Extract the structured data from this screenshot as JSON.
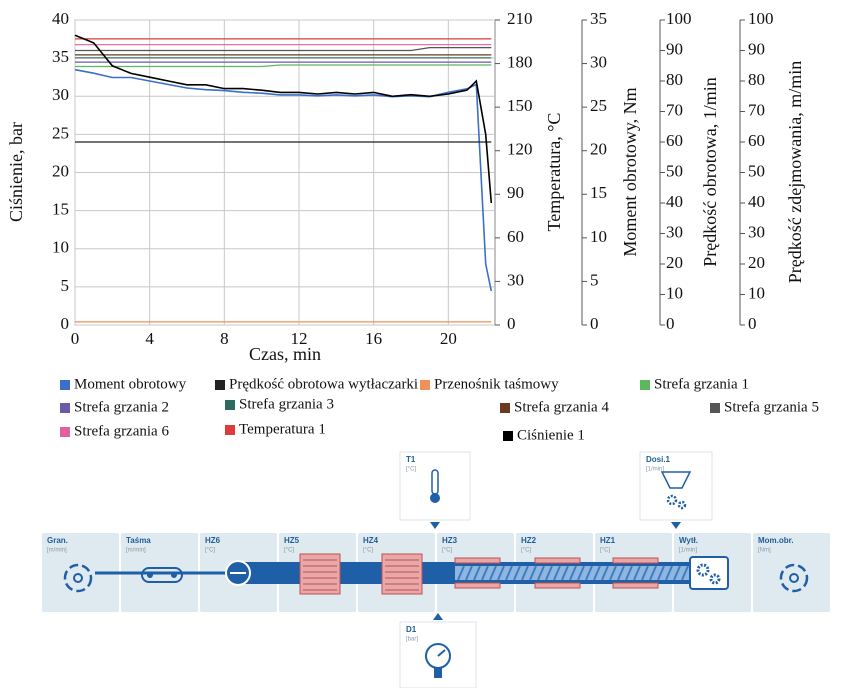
{
  "chart_data": {
    "type": "line",
    "x": [
      0,
      1,
      2,
      3,
      4,
      5,
      6,
      7,
      8,
      9,
      10,
      11,
      12,
      13,
      14,
      15,
      16,
      17,
      18,
      19,
      20,
      21,
      21.5,
      22,
      22.3
    ],
    "xlabel": "Czas, min",
    "xlim": [
      0,
      22.5
    ],
    "xticks": [
      0,
      4,
      8,
      12,
      16,
      20
    ],
    "grid": true,
    "ylabel": "Ciśnienie, bar",
    "ylim": [
      0,
      40
    ],
    "yticks": [
      0,
      5,
      10,
      15,
      20,
      25,
      30,
      35,
      40
    ],
    "y2label": "Temperatura, °C",
    "y2lim": [
      0,
      210
    ],
    "y2ticks": [
      0,
      30,
      60,
      90,
      120,
      150,
      180,
      210
    ],
    "y3label": "Moment obrotowy, Nm",
    "y3lim": [
      0,
      35
    ],
    "y3ticks": [
      0,
      5,
      10,
      15,
      20,
      25,
      30,
      35
    ],
    "y4label": "Prędkość obrotowa, 1/min",
    "y4lim": [
      0,
      100
    ],
    "y4ticks": [
      0,
      10,
      20,
      30,
      40,
      50,
      60,
      70,
      80,
      90,
      100
    ],
    "y5label": "Prędkość zdejmowania, m/min",
    "y5lim": [
      0,
      100
    ],
    "y5ticks": [
      0,
      10,
      20,
      30,
      40,
      50,
      60,
      70,
      80,
      90,
      100
    ],
    "series": [
      {
        "name": "Moment obrotowy",
        "color": "#3a70c8",
        "axis": "y3",
        "values": [
          29.3,
          28.9,
          28.4,
          28.4,
          28,
          27.6,
          27.2,
          27,
          26.9,
          26.7,
          26.6,
          26.4,
          26.4,
          26.3,
          26.4,
          26.3,
          26.4,
          26.2,
          26.3,
          26.2,
          26.7,
          27.1,
          27.6,
          7,
          3.9
        ]
      },
      {
        "name": "Prędkość obrotowa wytłaczarki",
        "color": "#222222",
        "axis": "y4",
        "values": [
          60,
          60,
          60,
          60,
          60,
          60,
          60,
          60,
          60,
          60,
          60,
          60,
          60,
          60,
          60,
          60,
          60,
          60,
          60,
          60,
          60,
          60,
          60,
          60,
          60
        ]
      },
      {
        "name": "Przenośnik taśmowy",
        "color": "#f0905a",
        "axis": "y5",
        "values": [
          1,
          1,
          1,
          1,
          1,
          1,
          1,
          1,
          1,
          1,
          1,
          1,
          1,
          1,
          1,
          1,
          1,
          1,
          1,
          1,
          1,
          1,
          1,
          1,
          1
        ]
      },
      {
        "name": "Strefa grzania 1",
        "color": "#5cb85c",
        "axis": "y2",
        "values": [
          178,
          178,
          178,
          178,
          178,
          178,
          178,
          178,
          178,
          178,
          178,
          179,
          179,
          179,
          179,
          179,
          179,
          179,
          179,
          179,
          179,
          179,
          179,
          179,
          179
        ]
      },
      {
        "name": "Strefa grzania 2",
        "color": "#6a5aa8",
        "axis": "y2",
        "values": [
          181,
          181,
          181,
          181,
          181,
          181,
          181,
          181,
          181,
          181,
          181,
          181,
          181,
          181,
          181,
          181,
          181,
          181,
          181,
          181,
          181,
          181,
          181,
          181,
          181
        ]
      },
      {
        "name": "Strefa grzania 3",
        "color": "#2e6b5e",
        "axis": "y2",
        "values": [
          184,
          184,
          184,
          184,
          184,
          184,
          184,
          184,
          184,
          184,
          184,
          184,
          184,
          184,
          184,
          184,
          184,
          184,
          184,
          184,
          184,
          184,
          184,
          184,
          184
        ]
      },
      {
        "name": "Strefa grzania 4",
        "color": "#6b3a1e",
        "axis": "y2",
        "values": [
          186,
          186,
          186,
          186,
          186,
          186,
          186,
          186,
          186,
          186,
          186,
          186,
          186,
          186,
          186,
          186,
          186,
          186,
          186,
          186,
          186,
          186,
          186,
          186,
          186
        ]
      },
      {
        "name": "Strefa grzania 5",
        "color": "#555555",
        "axis": "y2",
        "values": [
          189,
          189,
          189,
          189,
          189,
          189,
          189,
          189,
          189,
          189,
          189,
          189,
          189,
          189,
          189,
          189,
          189,
          189,
          189,
          191,
          191,
          191,
          191,
          191,
          191
        ]
      },
      {
        "name": "Strefa grzania 6",
        "color": "#e060a0",
        "axis": "y2",
        "values": [
          193,
          193,
          193,
          193,
          193,
          193,
          193,
          193,
          193,
          193,
          193,
          193,
          193,
          193,
          193,
          193,
          193,
          193,
          193,
          193,
          193,
          193,
          193,
          193,
          193
        ]
      },
      {
        "name": "Temperatura 1",
        "color": "#e03a3a",
        "axis": "y2",
        "values": [
          197,
          197,
          197,
          197,
          197,
          197,
          197,
          197,
          197,
          197,
          197,
          197,
          197,
          197,
          197,
          197,
          197,
          197,
          197,
          197,
          197,
          197,
          197,
          197,
          197
        ]
      },
      {
        "name": "Ciśnienie 1",
        "color": "#000000",
        "axis": "y",
        "values": [
          38,
          37,
          34,
          33,
          32.5,
          32,
          31.5,
          31.5,
          31,
          31,
          30.8,
          30.5,
          30.5,
          30.3,
          30.5,
          30.3,
          30.5,
          30,
          30.2,
          30,
          30.3,
          30.8,
          32,
          25,
          16
        ]
      }
    ]
  },
  "diagram": {
    "stations": [
      {
        "label": "Gran.",
        "unit": "[m/min]"
      },
      {
        "label": "Taśma",
        "unit": "[m/min]"
      },
      {
        "label": "HZ6",
        "unit": "[°C]"
      },
      {
        "label": "HZ5",
        "unit": "[°C]"
      },
      {
        "label": "HZ4",
        "unit": "[°C]"
      },
      {
        "label": "HZ3",
        "unit": "[°C]"
      },
      {
        "label": "HZ2",
        "unit": "[°C]"
      },
      {
        "label": "HZ1",
        "unit": "[°C]"
      },
      {
        "label": "Wytł.",
        "unit": "[1/min]"
      },
      {
        "label": "Mom.obr.",
        "unit": "[Nm]"
      }
    ],
    "sensors": [
      {
        "label": "T1",
        "unit": "[°C]"
      },
      {
        "label": "Dosi.1",
        "unit": "[1/min]"
      },
      {
        "label": "D1",
        "unit": "[bar]"
      }
    ]
  }
}
